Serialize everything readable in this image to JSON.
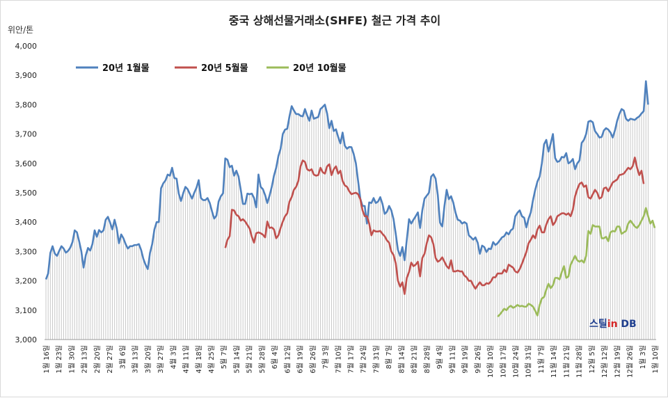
{
  "chart_data": {
    "type": "line",
    "title": "중국 상해선물거래소(SHFE) 철근 가격 추이",
    "unit_label": "위안/톤",
    "ylim": [
      3000,
      4000
    ],
    "yticks": [
      "3,000",
      "3,100",
      "3,200",
      "3,300",
      "3,400",
      "3,500",
      "3,600",
      "3,700",
      "3,800",
      "3,900",
      "4,000"
    ],
    "ytick_values": [
      3000,
      3100,
      3200,
      3300,
      3400,
      3500,
      3600,
      3700,
      3800,
      3900,
      4000
    ],
    "grid": false,
    "legend_position": "top-left",
    "x_labels": [
      "1월 16일",
      "1월 23일",
      "1월 30일",
      "2월 13일",
      "2월 20일",
      "2월 27일",
      "3월 6일",
      "3월 13일",
      "3월 20일",
      "3월 27일",
      "4월 3일",
      "4월 11일",
      "4월 18일",
      "4월 25일",
      "5월 7일",
      "5월 14일",
      "5월 21일",
      "5월 28일",
      "6월 4일",
      "6월 12일",
      "6월 19일",
      "6월 26일",
      "7월 3일",
      "7월 10일",
      "7월 17일",
      "7월 24일",
      "7월 31일",
      "8월 7일",
      "8월 14일",
      "8월 21일",
      "8월 28일",
      "9월 4일",
      "9월 11일",
      "9월 19일",
      "9월 26일",
      "10월 10일",
      "10월 17일",
      "10월 24일",
      "10월 31일",
      "11월 7일",
      "11월 14일",
      "11월 21일",
      "11월 28일",
      "12월 5일",
      "12월 12일",
      "12월 19일",
      "12월 26일",
      "1월 3일",
      "1월 10일"
    ],
    "series": [
      {
        "name": "20년 1월물",
        "color": "#4f81bd",
        "start": 0,
        "values": [
          3205,
          3225,
          3295,
          3318,
          3293,
          3285,
          3302,
          3318,
          3310,
          3296,
          3302,
          3313,
          3332,
          3372,
          3365,
          3335,
          3300,
          3245,
          3287,
          3312,
          3303,
          3325,
          3372,
          3350,
          3373,
          3365,
          3372,
          3408,
          3418,
          3398,
          3375,
          3408,
          3378,
          3328,
          3358,
          3345,
          3325,
          3310,
          3318,
          3318,
          3322,
          3322,
          3325,
          3305,
          3275,
          3255,
          3240,
          3295,
          3325,
          3375,
          3400,
          3400,
          3515,
          3532,
          3542,
          3562,
          3558,
          3585,
          3550,
          3548,
          3497,
          3472,
          3498,
          3520,
          3512,
          3496,
          3480,
          3500,
          3517,
          3543,
          3482,
          3475,
          3475,
          3482,
          3465,
          3437,
          3412,
          3422,
          3470,
          3488,
          3498,
          3617,
          3612,
          3587,
          3592,
          3558,
          3575,
          3555,
          3510,
          3462,
          3462,
          3497,
          3495,
          3497,
          3482,
          3450,
          3562,
          3520,
          3512,
          3492,
          3465,
          3490,
          3520,
          3558,
          3585,
          3625,
          3650,
          3700,
          3715,
          3718,
          3760,
          3795,
          3780,
          3768,
          3768,
          3762,
          3760,
          3785,
          3763,
          3745,
          3780,
          3752,
          3755,
          3758,
          3785,
          3792,
          3800,
          3770,
          3720,
          3745,
          3710,
          3716,
          3690,
          3668,
          3705,
          3660,
          3650,
          3656,
          3655,
          3632,
          3600,
          3540,
          3480,
          3455,
          3455,
          3395,
          3467,
          3465,
          3482,
          3465,
          3470,
          3485,
          3462,
          3428,
          3435,
          3455,
          3440,
          3410,
          3360,
          3305,
          3285,
          3315,
          3270,
          3340,
          3410,
          3395,
          3408,
          3420,
          3433,
          3380,
          3440,
          3480,
          3490,
          3500,
          3555,
          3563,
          3548,
          3492,
          3398,
          3385,
          3455,
          3510,
          3478,
          3488,
          3466,
          3432,
          3408,
          3405,
          3395,
          3400,
          3395,
          3355,
          3348,
          3340,
          3348,
          3330,
          3292,
          3320,
          3315,
          3298,
          3310,
          3308,
          3332,
          3322,
          3328,
          3338,
          3348,
          3352,
          3365,
          3358,
          3372,
          3378,
          3420,
          3432,
          3440,
          3420,
          3415,
          3382,
          3412,
          3433,
          3475,
          3510,
          3538,
          3555,
          3600,
          3665,
          3680,
          3640,
          3668,
          3700,
          3618,
          3605,
          3608,
          3622,
          3620,
          3635,
          3600,
          3605,
          3615,
          3580,
          3600,
          3610,
          3670,
          3680,
          3700,
          3742,
          3745,
          3740,
          3710,
          3700,
          3688,
          3690,
          3712,
          3720,
          3715,
          3705,
          3688,
          3712,
          3745,
          3768,
          3785,
          3780,
          3752,
          3745,
          3752,
          3750,
          3748,
          3755,
          3760,
          3770,
          3778,
          3880,
          3800
        ]
      },
      {
        "name": "20년 5월물",
        "color": "#c0504d",
        "start": 81,
        "values": [
          3312,
          3340,
          3352,
          3442,
          3440,
          3425,
          3420,
          3405,
          3410,
          3402,
          3390,
          3378,
          3350,
          3330,
          3362,
          3365,
          3362,
          3357,
          3348,
          3402,
          3380,
          3382,
          3375,
          3345,
          3355,
          3380,
          3402,
          3420,
          3430,
          3470,
          3485,
          3510,
          3520,
          3540,
          3590,
          3610,
          3605,
          3580,
          3575,
          3580,
          3562,
          3558,
          3560,
          3585,
          3570,
          3565,
          3590,
          3597,
          3560,
          3580,
          3590,
          3565,
          3575,
          3540,
          3525,
          3520,
          3505,
          3495,
          3498,
          3500,
          3495,
          3478,
          3440,
          3420,
          3420,
          3395,
          3355,
          3372,
          3368,
          3368,
          3370,
          3360,
          3352,
          3338,
          3330,
          3300,
          3288,
          3260,
          3200,
          3180,
          3195,
          3155,
          3210,
          3230,
          3262,
          3250,
          3255,
          3265,
          3215,
          3278,
          3292,
          3328,
          3355,
          3348,
          3325,
          3278,
          3265,
          3270,
          3280,
          3265,
          3250,
          3242,
          3270,
          3232,
          3232,
          3235,
          3232,
          3232,
          3218,
          3212,
          3200,
          3200,
          3185,
          3173,
          3185,
          3195,
          3185,
          3185,
          3192,
          3190,
          3198,
          3212,
          3212,
          3225,
          3225,
          3225,
          3238,
          3230,
          3255,
          3250,
          3245,
          3232,
          3228,
          3240,
          3258,
          3278,
          3298,
          3328,
          3340,
          3355,
          3345,
          3375,
          3388,
          3365,
          3365,
          3392,
          3410,
          3420,
          3390,
          3400,
          3420,
          3425,
          3430,
          3430,
          3425,
          3430,
          3420,
          3442,
          3488,
          3512,
          3530,
          3535,
          3520,
          3525,
          3485,
          3480,
          3495,
          3510,
          3500,
          3480,
          3485,
          3515,
          3518,
          3505,
          3520,
          3535,
          3540,
          3545,
          3560,
          3562,
          3565,
          3575,
          3585,
          3580,
          3590,
          3620,
          3585,
          3560,
          3575,
          3530
        ]
      },
      {
        "name": "20년 10월물",
        "color": "#9bbb59",
        "start": 204,
        "values": [
          3078,
          3085,
          3095,
          3105,
          3100,
          3110,
          3115,
          3108,
          3112,
          3118,
          3113,
          3115,
          3112,
          3112,
          3122,
          3118,
          3112,
          3098,
          3082,
          3118,
          3140,
          3145,
          3170,
          3190,
          3175,
          3185,
          3210,
          3210,
          3205,
          3230,
          3250,
          3210,
          3215,
          3255,
          3270,
          3285,
          3270,
          3265,
          3270,
          3262,
          3285,
          3370,
          3360,
          3390,
          3385,
          3385,
          3385,
          3345,
          3345,
          3350,
          3335,
          3365,
          3370,
          3368,
          3385,
          3385,
          3360,
          3365,
          3370,
          3395,
          3405,
          3395,
          3385,
          3380,
          3390,
          3405,
          3420,
          3448,
          3420,
          3395,
          3405,
          3380
        ]
      }
    ],
    "total_points": 276,
    "brand_logo": {
      "part1": "스틸",
      "part2": "in",
      "part3": " DB",
      "color1": "#1f3f8f",
      "color2": "#d62828"
    }
  }
}
